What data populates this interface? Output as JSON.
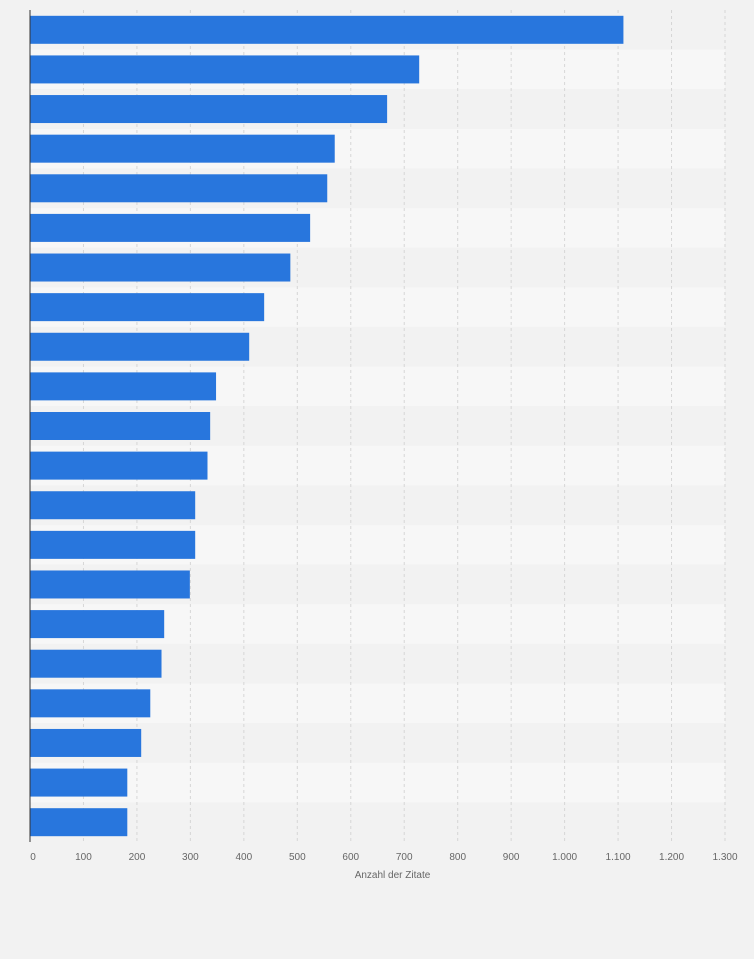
{
  "chart_data": {
    "type": "bar",
    "orientation": "horizontal",
    "categories": [
      "",
      "",
      "",
      "",
      "",
      "",
      "",
      "",
      "",
      "",
      "",
      "",
      "",
      "",
      "",
      "",
      "",
      "",
      "",
      "",
      ""
    ],
    "values": [
      1110,
      728,
      668,
      570,
      556,
      524,
      487,
      438,
      410,
      348,
      337,
      332,
      309,
      309,
      299,
      251,
      246,
      225,
      208,
      182,
      182
    ],
    "xlabel": "Anzahl der Zitate",
    "ylabel": "",
    "xlim": [
      0,
      1300
    ],
    "xticks": [
      0,
      100,
      200,
      300,
      400,
      500,
      600,
      700,
      800,
      900,
      1000,
      1100,
      1200,
      1300
    ],
    "xtick_labels": [
      "0",
      "100",
      "200",
      "300",
      "400",
      "500",
      "600",
      "700",
      "800",
      "900",
      "1.000",
      "1.100",
      "1.200",
      "1.300"
    ],
    "grid": "vertical dashed",
    "legend": "none"
  },
  "colors": {
    "bar": "#2876dd",
    "background": "#f2f2f2",
    "band_light": "#f7f7f7",
    "band_dark": "#f2f2f2",
    "grid": "#d6d6d6",
    "axis_text": "#666666"
  }
}
